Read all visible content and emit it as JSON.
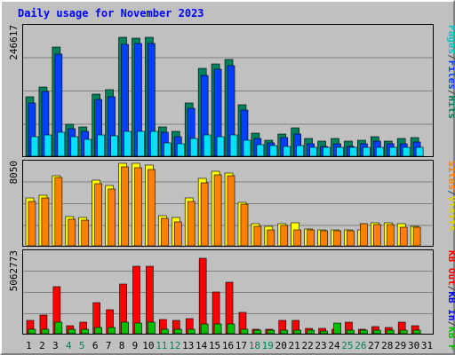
{
  "title": "Daily usage for November 2023",
  "colors": {
    "title": "#0000ff",
    "hits": "#00805c",
    "files": "#0040ff",
    "pages": "#00e0ff",
    "visits": "#ffff00",
    "sites": "#ff8000",
    "kb_in": "#ff0000",
    "kb_out": "#00c000",
    "kb_f": "#0000ff",
    "label_hits": "#00805c",
    "label_files": "#0040ff",
    "label_pages": "#00c8c8",
    "label_visits": "#e0d000",
    "label_sites": "#ff8000",
    "label_kbin": "#0000ff",
    "label_kbout": "#00c000",
    "label_kbf": "#ff0000",
    "weekend_day": "#00805c",
    "weekday": "#000000"
  },
  "chart_data": [
    {
      "type": "bar",
      "name": "hits-files-pages",
      "max_label": "246617",
      "ylim": [
        0,
        246617
      ],
      "legend": [
        "Hits",
        "/",
        "Files",
        "/",
        "Pages"
      ],
      "categories": [
        "1",
        "2",
        "3",
        "4",
        "5",
        "6",
        "7",
        "8",
        "9",
        "10",
        "11",
        "12",
        "13",
        "14",
        "15",
        "16",
        "17",
        "18",
        "19",
        "20",
        "21",
        "22",
        "23",
        "24",
        "25",
        "26",
        "27",
        "28",
        "29",
        "30",
        "31"
      ],
      "series": [
        {
          "name": "Hits",
          "values": [
            113000,
            132000,
            207000,
            60000,
            56000,
            118000,
            126000,
            226000,
            224000,
            226000,
            55000,
            48000,
            101000,
            168000,
            175000,
            184000,
            98000,
            44000,
            31000,
            43000,
            54000,
            33000,
            29000,
            33000,
            29000,
            31000,
            37000,
            29000,
            33000,
            36000,
            0
          ]
        },
        {
          "name": "Files",
          "values": [
            102000,
            123000,
            195000,
            52000,
            47000,
            108000,
            113000,
            212000,
            214000,
            215000,
            45000,
            38000,
            92000,
            154000,
            165000,
            173000,
            87000,
            33000,
            25000,
            35000,
            43000,
            23000,
            19000,
            23000,
            19000,
            24000,
            29000,
            24000,
            24000,
            27000,
            0
          ]
        },
        {
          "name": "Pages",
          "values": [
            37000,
            40000,
            46000,
            37000,
            32000,
            41000,
            39000,
            48000,
            47000,
            48000,
            26000,
            23000,
            34000,
            40000,
            38000,
            40000,
            30000,
            22000,
            20000,
            19000,
            21000,
            17000,
            17000,
            17000,
            17000,
            17000,
            17000,
            17000,
            17000,
            17000,
            0
          ]
        }
      ]
    },
    {
      "type": "bar",
      "name": "visits-sites",
      "max_label": "8050",
      "ylim": [
        0,
        8050
      ],
      "legend": [
        "Visits",
        "/",
        "Sites"
      ],
      "categories": [
        "1",
        "2",
        "3",
        "4",
        "5",
        "6",
        "7",
        "8",
        "9",
        "10",
        "11",
        "12",
        "13",
        "14",
        "15",
        "16",
        "17",
        "18",
        "19",
        "20",
        "21",
        "22",
        "23",
        "24",
        "25",
        "26",
        "27",
        "28",
        "29",
        "30",
        "31"
      ],
      "series": [
        {
          "name": "Visits",
          "values": [
            4600,
            4900,
            6800,
            2800,
            2700,
            6300,
            5800,
            8000,
            7950,
            7800,
            2900,
            2700,
            4600,
            6500,
            7200,
            7050,
            4200,
            2150,
            1900,
            2100,
            2200,
            1600,
            1500,
            1500,
            1500,
            1500,
            2200,
            2200,
            2100,
            1900,
            0
          ]
        },
        {
          "name": "Sites",
          "values": [
            4300,
            4600,
            6600,
            2600,
            2500,
            6000,
            5500,
            7600,
            7550,
            7400,
            2650,
            2350,
            4300,
            6100,
            6850,
            6800,
            4000,
            1850,
            1500,
            2000,
            1550,
            1550,
            1450,
            1450,
            1450,
            2100,
            2050,
            2050,
            1800,
            1800,
            0
          ]
        }
      ]
    },
    {
      "type": "bar",
      "name": "kbytes",
      "max_label": "5062773",
      "ylim": [
        0,
        5062773
      ],
      "legend": [
        "KB F",
        "/",
        "KB In",
        "/",
        "KB Out"
      ],
      "categories": [
        "1",
        "2",
        "3",
        "4",
        "5",
        "6",
        "7",
        "8",
        "9",
        "10",
        "11",
        "12",
        "13",
        "14",
        "15",
        "16",
        "17",
        "18",
        "19",
        "20",
        "21",
        "22",
        "23",
        "24",
        "25",
        "26",
        "27",
        "28",
        "29",
        "30",
        "31"
      ],
      "series": [
        {
          "name": "KB F",
          "values": [
            800000,
            1150000,
            2900000,
            500000,
            700000,
            1950000,
            1500000,
            3100000,
            4200000,
            4200000,
            900000,
            850000,
            950000,
            4700000,
            2600000,
            3200000,
            1300000,
            300000,
            250000,
            800000,
            850000,
            350000,
            350000,
            250000,
            700000,
            250000,
            450000,
            400000,
            700000,
            500000,
            0
          ]
        },
        {
          "name": "KB In",
          "values": [
            300000,
            300000,
            700000,
            300000,
            300000,
            400000,
            400000,
            700000,
            650000,
            700000,
            250000,
            300000,
            300000,
            600000,
            600000,
            600000,
            300000,
            200000,
            200000,
            200000,
            200000,
            200000,
            150000,
            650000,
            200000,
            200000,
            200000,
            200000,
            200000,
            200000,
            0
          ]
        },
        {
          "name": "KB Out",
          "values": [
            0,
            0,
            0,
            0,
            0,
            0,
            0,
            0,
            0,
            0,
            0,
            0,
            0,
            0,
            0,
            0,
            0,
            0,
            0,
            0,
            0,
            0,
            0,
            0,
            0,
            0,
            0,
            0,
            0,
            0,
            0
          ]
        }
      ]
    }
  ],
  "weekend_days": [
    "4",
    "5",
    "11",
    "12",
    "18",
    "19",
    "25",
    "26"
  ]
}
